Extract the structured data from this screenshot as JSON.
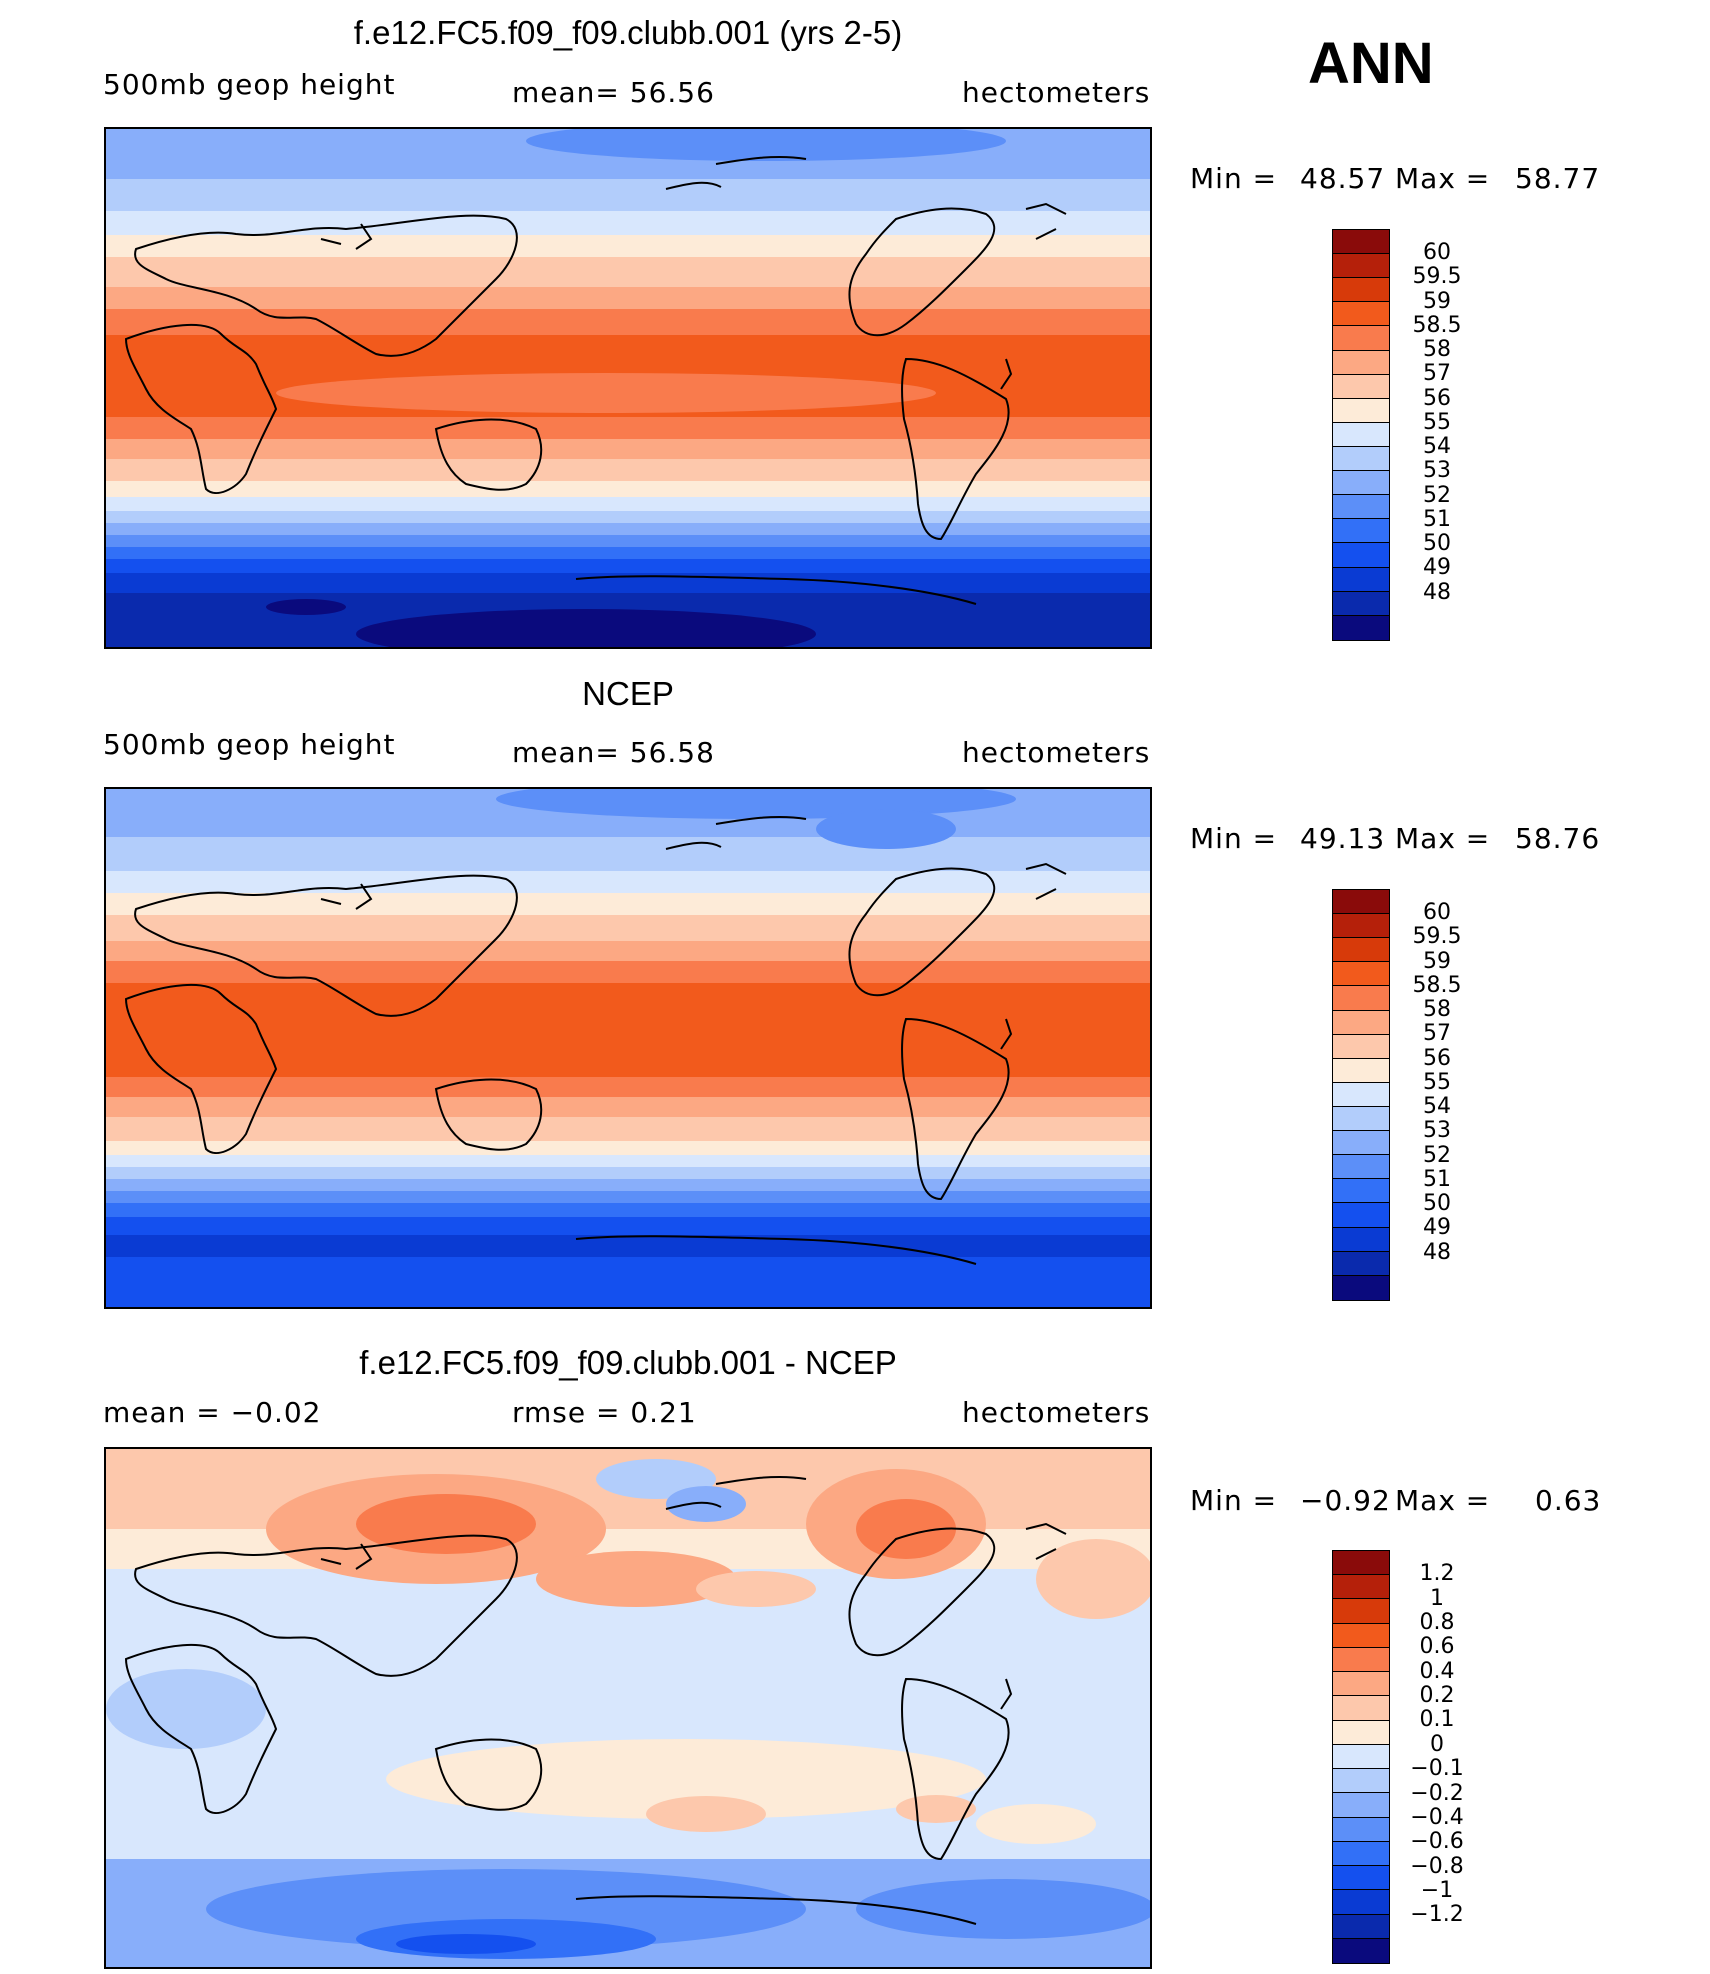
{
  "season": "ANN",
  "colors": {
    "abs": [
      "#0a0a7d",
      "#0a2aad",
      "#0a3bd3",
      "#1450ef",
      "#3270f7",
      "#5c8ff8",
      "#88aefa",
      "#b2cdfb",
      "#d8e7fd",
      "#fdebd8",
      "#fdc8ac",
      "#fca883",
      "#f97b4d",
      "#f25a1c",
      "#d73a0a",
      "#b5200a",
      "#8a0b0a"
    ],
    "diff": [
      "#0a0a7d",
      "#0a2aad",
      "#0a3bd3",
      "#1450ef",
      "#3270f7",
      "#5c8ff8",
      "#88aefa",
      "#b2cdfb",
      "#d8e7fd",
      "#fdebd8",
      "#fdc8ac",
      "#fca883",
      "#f97b4d",
      "#f25a1c",
      "#d73a0a",
      "#b5200a",
      "#8a0b0a"
    ]
  },
  "panels": [
    {
      "title": "f.e12.FC5.f09_f09.clubb.001 (yrs 2-5)",
      "left": "500mb  geop  height",
      "middle": "mean=   56.56",
      "right": "hectometers",
      "min_label": "Min  =",
      "min_value": "48.57",
      "max_label": "Max  =",
      "max_value": "58.77",
      "levels": [
        "60",
        "59.5",
        "59",
        "58.5",
        "58",
        "57",
        "56",
        "55",
        "54",
        "53",
        "52",
        "51",
        "50",
        "49",
        "48"
      ]
    },
    {
      "title": "NCEP",
      "left": "500mb  geop  height",
      "middle": "mean=   56.58",
      "right": "hectometers",
      "min_label": "Min  =",
      "min_value": "49.13",
      "max_label": "Max  =",
      "max_value": "58.76",
      "levels": [
        "60",
        "59.5",
        "59",
        "58.5",
        "58",
        "57",
        "56",
        "55",
        "54",
        "53",
        "52",
        "51",
        "50",
        "49",
        "48"
      ]
    },
    {
      "title": "f.e12.FC5.f09_f09.clubb.001 - NCEP",
      "left": "mean  =    −0.02",
      "middle": "rmse  =     0.21",
      "right": "hectometers",
      "min_label": "Min  =",
      "min_value": "−0.92",
      "max_label": "Max  =",
      "max_value": "0.63",
      "levels": [
        "1.2",
        "1",
        "0.8",
        "0.6",
        "0.4",
        "0.2",
        "0.1",
        "0",
        "−0.1",
        "−0.2",
        "−0.4",
        "−0.6",
        "−0.8",
        "−1",
        "−1.2"
      ]
    }
  ]
}
